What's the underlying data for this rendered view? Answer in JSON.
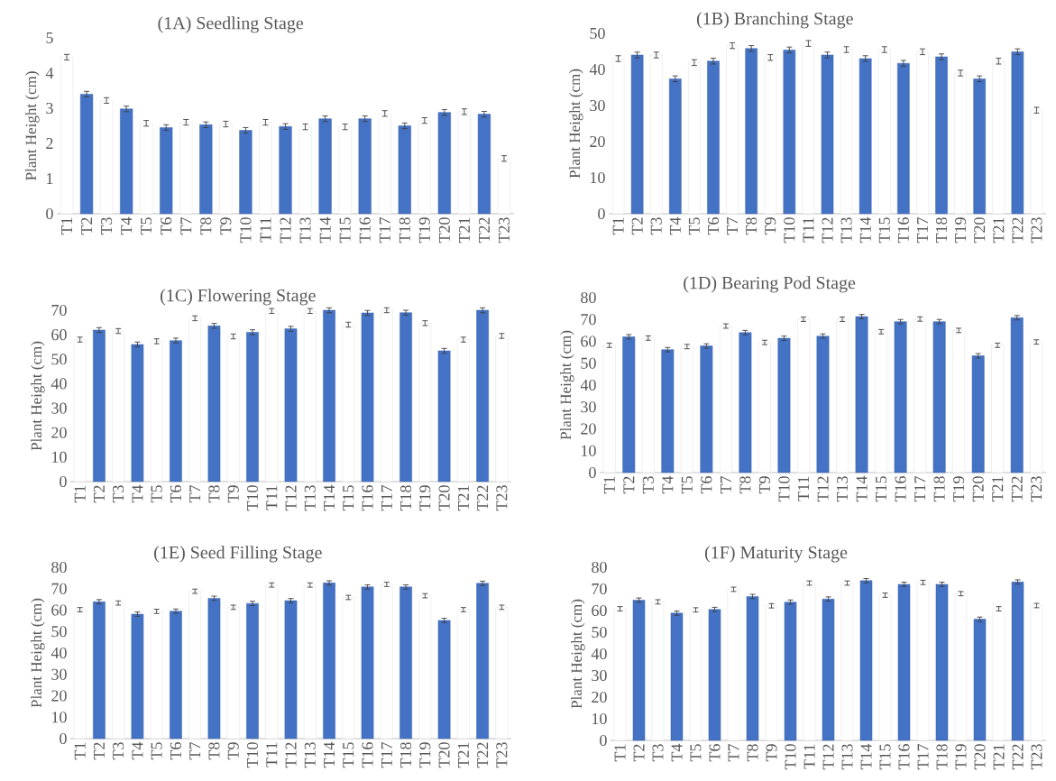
{
  "chart_data": [
    {
      "type": "bar",
      "title": "(1A) Seedling Stage",
      "ylabel": "Plant Height (cm)",
      "categories": [
        "T1",
        "T2",
        "T3",
        "T4",
        "T5",
        "T6",
        "T7",
        "T8",
        "T9",
        "T10",
        "T11",
        "T12",
        "T13",
        "T14",
        "T15",
        "T16",
        "T17",
        "T18",
        "T19",
        "T20",
        "T21",
        "T22",
        "T23"
      ],
      "values": [
        4.45,
        3.4,
        3.22,
        2.98,
        2.57,
        2.45,
        2.6,
        2.53,
        2.55,
        2.37,
        2.6,
        2.48,
        2.47,
        2.7,
        2.47,
        2.7,
        2.85,
        2.5,
        2.65,
        2.88,
        2.9,
        2.83,
        1.57
      ],
      "errors": [
        0.08,
        0.08,
        0.08,
        0.08,
        0.08,
        0.08,
        0.08,
        0.08,
        0.08,
        0.08,
        0.08,
        0.08,
        0.08,
        0.08,
        0.08,
        0.08,
        0.08,
        0.08,
        0.08,
        0.08,
        0.08,
        0.08,
        0.08
      ],
      "colors": [
        "#ffffff",
        "#4472c4",
        "#ffffff",
        "#4472c4",
        "#ffffff",
        "#4472c4",
        "#ffffff",
        "#4472c4",
        "#ffffff",
        "#4472c4",
        "#ffffff",
        "#4472c4",
        "#ffffff",
        "#4472c4",
        "#ffffff",
        "#4472c4",
        "#ffffff",
        "#4472c4",
        "#ffffff",
        "#4472c4",
        "#ffffff",
        "#4472c4",
        "#ffffff"
      ],
      "ylim": [
        0,
        5
      ],
      "yticks": [
        0,
        1,
        2,
        3,
        4,
        5
      ]
    },
    {
      "type": "bar",
      "title": "(1B) Branching Stage",
      "ylabel": "Plant Height (cm)",
      "categories": [
        "T1",
        "T2",
        "T3",
        "T4",
        "T5",
        "T6",
        "T7",
        "T8",
        "T9",
        "T10",
        "T11",
        "T12",
        "T13",
        "T14",
        "T15",
        "T16",
        "T17",
        "T18",
        "T19",
        "T20",
        "T21",
        "T22",
        "T23"
      ],
      "values": [
        43.0,
        44.0,
        44.0,
        37.4,
        41.9,
        42.3,
        46.6,
        45.8,
        43.3,
        45.4,
        47.2,
        44.0,
        45.5,
        43.0,
        45.5,
        41.7,
        44.9,
        43.5,
        39.0,
        37.4,
        42.3,
        44.9,
        28.7
      ],
      "errors": [
        0.8,
        0.8,
        0.8,
        0.8,
        0.8,
        0.8,
        0.8,
        0.8,
        0.8,
        0.8,
        0.8,
        0.8,
        0.8,
        0.8,
        0.8,
        0.8,
        0.8,
        0.8,
        0.8,
        0.8,
        0.8,
        0.8,
        0.8
      ],
      "colors": [
        "#ffffff",
        "#4472c4",
        "#ffffff",
        "#4472c4",
        "#ffffff",
        "#4472c4",
        "#ffffff",
        "#4472c4",
        "#ffffff",
        "#4472c4",
        "#ffffff",
        "#4472c4",
        "#ffffff",
        "#4472c4",
        "#ffffff",
        "#4472c4",
        "#ffffff",
        "#4472c4",
        "#ffffff",
        "#4472c4",
        "#ffffff",
        "#4472c4",
        "#ffffff"
      ],
      "ylim": [
        0,
        50
      ],
      "yticks": [
        0,
        10,
        20,
        30,
        40,
        50
      ]
    },
    {
      "type": "bar",
      "title": "(1C) Flowering Stage",
      "ylabel": "Plant Height (cm)",
      "categories": [
        "T1",
        "T2",
        "T3",
        "T4",
        "T5",
        "T6",
        "T7",
        "T8",
        "T9",
        "T10",
        "T11",
        "T12",
        "T13",
        "T14",
        "T15",
        "T16",
        "T17",
        "T18",
        "T19",
        "T20",
        "T21",
        "T22",
        "T23"
      ],
      "values": [
        58.0,
        61.9,
        61.5,
        56.0,
        57.3,
        57.6,
        66.7,
        63.6,
        59.3,
        61.0,
        69.7,
        62.4,
        69.7,
        70,
        64.1,
        68.9,
        70,
        69.0,
        64.7,
        53.4,
        58.0,
        70,
        59.5
      ],
      "errors": [
        1,
        1,
        1,
        1,
        1,
        1,
        1,
        1,
        1,
        1,
        1,
        1,
        1,
        1,
        1,
        1,
        1,
        1,
        1,
        1,
        1,
        1,
        1
      ],
      "colors": [
        "#ffffff",
        "#4472c4",
        "#ffffff",
        "#4472c4",
        "#ffffff",
        "#4472c4",
        "#ffffff",
        "#4472c4",
        "#ffffff",
        "#4472c4",
        "#ffffff",
        "#4472c4",
        "#ffffff",
        "#4472c4",
        "#ffffff",
        "#4472c4",
        "#ffffff",
        "#4472c4",
        "#ffffff",
        "#4472c4",
        "#ffffff",
        "#4472c4",
        "#ffffff"
      ],
      "ylim": [
        0,
        70
      ],
      "yticks": [
        0,
        10,
        20,
        30,
        40,
        50,
        60,
        70
      ]
    },
    {
      "type": "bar",
      "title": "(1D) Bearing Pod Stage",
      "ylabel": "Plant Height (cm)",
      "categories": [
        "T1",
        "T2",
        "T3",
        "T4",
        "T5",
        "T6",
        "T7",
        "T8",
        "T9",
        "T10",
        "T11",
        "T12",
        "T13",
        "T14",
        "T15",
        "T16",
        "T17",
        "T18",
        "T19",
        "T20",
        "T21",
        "T22",
        "T23"
      ],
      "values": [
        58.2,
        62.1,
        61.5,
        56.2,
        57.6,
        57.9,
        67.0,
        64.0,
        59.5,
        61.4,
        70.1,
        62.4,
        70.1,
        71.3,
        64.4,
        69.0,
        70.2,
        69.0,
        65.0,
        53.4,
        58.2,
        70.8,
        59.7
      ],
      "errors": [
        1,
        1,
        1,
        1,
        1,
        1,
        1,
        1,
        1,
        1,
        1,
        1,
        1,
        1,
        1,
        1,
        1,
        1,
        1,
        1,
        1,
        1,
        1
      ],
      "colors": [
        "#ffffff",
        "#4472c4",
        "#ffffff",
        "#4472c4",
        "#ffffff",
        "#4472c4",
        "#ffffff",
        "#4472c4",
        "#ffffff",
        "#4472c4",
        "#ffffff",
        "#4472c4",
        "#ffffff",
        "#4472c4",
        "#ffffff",
        "#4472c4",
        "#ffffff",
        "#4472c4",
        "#ffffff",
        "#4472c4",
        "#ffffff",
        "#4472c4",
        "#ffffff"
      ],
      "ylim": [
        0,
        80
      ],
      "yticks": [
        0,
        10,
        20,
        30,
        40,
        50,
        60,
        70,
        80
      ]
    },
    {
      "type": "bar",
      "title": "(1E) Seed Filling Stage",
      "ylabel": "Plant Height (cm)",
      "categories": [
        "T1",
        "T2",
        "T3",
        "T4",
        "T5",
        "T6",
        "T7",
        "T8",
        "T9",
        "T10",
        "T11",
        "T12",
        "T13",
        "T14",
        "T15",
        "T16",
        "T17",
        "T18",
        "T19",
        "T20",
        "T21",
        "T22",
        "T23"
      ],
      "values": [
        60.2,
        63.9,
        63.3,
        58.1,
        59.4,
        59.5,
        68.8,
        65.5,
        61.3,
        63.1,
        71.7,
        64.4,
        71.7,
        72.7,
        65.9,
        70.8,
        72.0,
        70.8,
        66.7,
        55.2,
        60.2,
        72.5,
        61.3
      ],
      "errors": [
        1,
        1,
        1,
        1,
        1,
        1,
        1,
        1,
        1,
        1,
        1,
        1,
        1,
        1,
        1,
        1,
        1,
        1,
        1,
        1,
        1,
        1,
        1
      ],
      "colors": [
        "#ffffff",
        "#4472c4",
        "#ffffff",
        "#4472c4",
        "#ffffff",
        "#4472c4",
        "#ffffff",
        "#4472c4",
        "#ffffff",
        "#4472c4",
        "#ffffff",
        "#4472c4",
        "#ffffff",
        "#4472c4",
        "#ffffff",
        "#4472c4",
        "#ffffff",
        "#4472c4",
        "#ffffff",
        "#4472c4",
        "#ffffff",
        "#4472c4",
        "#ffffff"
      ],
      "ylim": [
        0,
        80
      ],
      "yticks": [
        0,
        10,
        20,
        30,
        40,
        50,
        60,
        70,
        80
      ]
    },
    {
      "type": "bar",
      "title": "(1F) Maturity Stage",
      "ylabel": "Plant Height (cm)",
      "categories": [
        "T1",
        "T2",
        "T3",
        "T4",
        "T5",
        "T6",
        "T7",
        "T8",
        "T9",
        "T10",
        "T11",
        "T12",
        "T13",
        "T14",
        "T15",
        "T16",
        "T17",
        "T18",
        "T19",
        "T20",
        "T21",
        "T22",
        "T23"
      ],
      "values": [
        60.8,
        64.8,
        64.0,
        58.8,
        60.3,
        60.5,
        69.8,
        66.5,
        62.2,
        63.9,
        72.7,
        65.3,
        72.7,
        73.8,
        67.1,
        72.1,
        73.0,
        72.1,
        67.8,
        56.0,
        60.8,
        73.2,
        62.3
      ],
      "errors": [
        1,
        1,
        1,
        1,
        1,
        1,
        1,
        1,
        1,
        1,
        1,
        1,
        1,
        1,
        1,
        1,
        1,
        1,
        1,
        1,
        1,
        1,
        1
      ],
      "colors": [
        "#ffffff",
        "#4472c4",
        "#ffffff",
        "#4472c4",
        "#ffffff",
        "#4472c4",
        "#ffffff",
        "#4472c4",
        "#ffffff",
        "#4472c4",
        "#ffffff",
        "#4472c4",
        "#ffffff",
        "#4472c4",
        "#ffffff",
        "#4472c4",
        "#ffffff",
        "#4472c4",
        "#ffffff",
        "#4472c4",
        "#ffffff",
        "#4472c4",
        "#ffffff"
      ],
      "ylim": [
        0,
        80
      ],
      "yticks": [
        0,
        10,
        20,
        30,
        40,
        50,
        60,
        70,
        80
      ]
    }
  ]
}
